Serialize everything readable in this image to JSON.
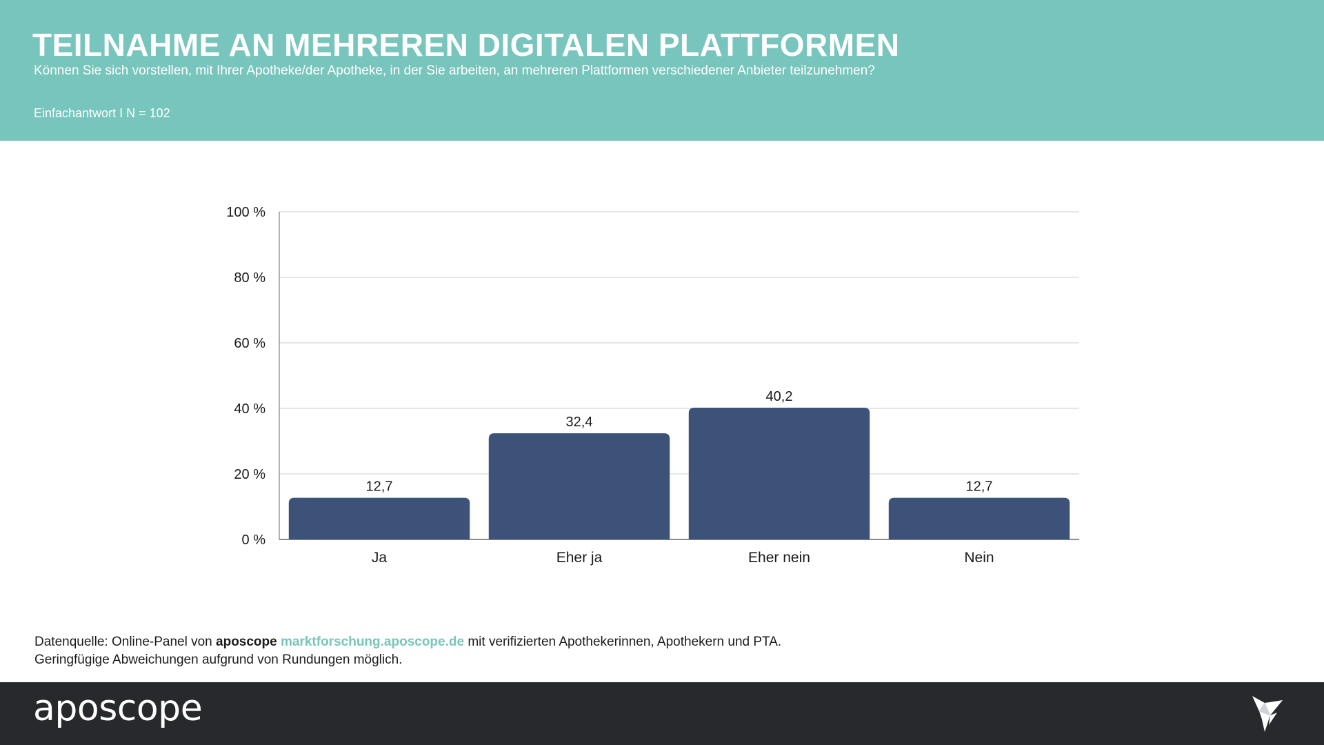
{
  "header": {
    "title": "TEILNAHME AN MEHREREN DIGITALEN PLATTFORMEN",
    "subtitle": "Können Sie sich vorstellen, mit Ihrer Apotheke/der Apotheke, in der Sie arbeiten, an mehreren Plattformen verschiedener Anbieter teilzunehmen?",
    "note": "Einfachantwort I N = 102"
  },
  "colors": {
    "header_bg": "#77c5bc",
    "bar": "#3d5278",
    "footer_bg": "#28292d",
    "link": "#77c5bc"
  },
  "chart_data": {
    "type": "bar",
    "categories": [
      "Ja",
      "Eher ja",
      "Eher nein",
      "Nein"
    ],
    "values": [
      12.7,
      32.4,
      40.2,
      12.7
    ],
    "value_labels": [
      "12,7",
      "32,4",
      "40,2",
      "12,7"
    ],
    "ylim": [
      0,
      100
    ],
    "yticks": [
      0,
      20,
      40,
      60,
      80,
      100
    ],
    "ytick_labels": [
      "0 %",
      "20 %",
      "40 %",
      "60 %",
      "80 %",
      "100 %"
    ],
    "grid": true,
    "title": "",
    "xlabel": "",
    "ylabel": ""
  },
  "source": {
    "prefix": "Datenquelle: Online-Panel von ",
    "brand": "aposcope",
    "link": "marktforschung.aposcope.de",
    "suffix": " mit verifizierten Apothekerinnen, Apothekern und PTA.",
    "line2": "Geringfügige Abweichungen aufgrund von Rundungen möglich."
  },
  "footer": {
    "logo_text": "aposcope",
    "bird_icon": "origami-bird-icon"
  }
}
